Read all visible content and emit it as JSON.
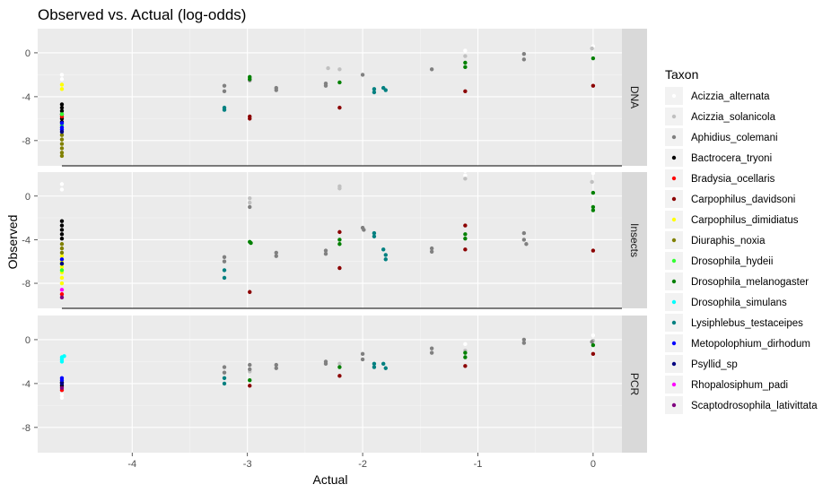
{
  "chart_data": {
    "type": "scatter",
    "title": "Observed vs. Actual (log-odds)",
    "xlabel": "Actual",
    "ylabel": "Observed",
    "xlim": [
      -4.82,
      0.25
    ],
    "ylim": [
      -10.3,
      2.2
    ],
    "x_ticks": [
      -4,
      -3,
      -2,
      -1,
      0
    ],
    "y_ticks": [
      0,
      -4,
      -8
    ],
    "grid": true,
    "legend": {
      "title": "Taxon",
      "position": "right"
    },
    "facets": [
      "DNA",
      "Insects",
      "PCR"
    ],
    "series": [
      {
        "name": "Acizzia_alternata",
        "color": "#ffffff",
        "points": {
          "DNA": [
            [
              -4.61,
              -2.0
            ],
            [
              -4.61,
              -2.4
            ],
            [
              -1.11,
              0.2
            ],
            [
              0.0,
              0.6
            ]
          ],
          "Insects": [
            [
              -4.61,
              1.1
            ],
            [
              -4.61,
              0.6
            ],
            [
              -1.11,
              2.3
            ],
            [
              -1.11,
              1.9
            ],
            [
              0.0,
              2.1
            ]
          ],
          "PCR": [
            [
              -4.61,
              -5.0
            ],
            [
              -4.61,
              -5.3
            ],
            [
              -1.11,
              -0.4
            ],
            [
              0.0,
              0.4
            ]
          ]
        }
      },
      {
        "name": "Acizzia_solanicola",
        "color": "#c0c0c0",
        "points": {
          "DNA": [
            [
              -2.98,
              -2.3
            ],
            [
              -2.3,
              -1.4
            ],
            [
              -2.2,
              -1.5
            ],
            [
              -1.11,
              -0.3
            ],
            [
              -0.01,
              0.4
            ]
          ],
          "Insects": [
            [
              -2.98,
              -0.2
            ],
            [
              -2.98,
              -0.6
            ],
            [
              -2.2,
              0.9
            ],
            [
              -2.2,
              0.7
            ],
            [
              -1.11,
              1.6
            ],
            [
              -0.01,
              1.3
            ]
          ],
          "PCR": [
            [
              -2.98,
              -2.9
            ],
            [
              -2.2,
              -2.2
            ],
            [
              -1.11,
              -1.0
            ],
            [
              0.0,
              -0.1
            ]
          ]
        }
      },
      {
        "name": "Aphidius_colemani",
        "color": "#808080",
        "points": {
          "DNA": [
            [
              -3.2,
              -3.0
            ],
            [
              -3.2,
              -3.5
            ],
            [
              -2.98,
              -2.5
            ],
            [
              -2.75,
              -3.2
            ],
            [
              -2.75,
              -3.4
            ],
            [
              -2.32,
              -2.8
            ],
            [
              -2.32,
              -3.0
            ],
            [
              -2.0,
              -2.0
            ],
            [
              -1.4,
              -1.5
            ],
            [
              -0.6,
              -0.1
            ],
            [
              -0.6,
              -0.6
            ]
          ],
          "Insects": [
            [
              -3.2,
              -5.6
            ],
            [
              -3.2,
              -6.0
            ],
            [
              -2.98,
              -1.0
            ],
            [
              -2.75,
              -5.2
            ],
            [
              -2.75,
              -5.5
            ],
            [
              -2.32,
              -5.0
            ],
            [
              -2.32,
              -5.3
            ],
            [
              -2.0,
              -2.9
            ],
            [
              -1.99,
              -3.1
            ],
            [
              -1.4,
              -4.8
            ],
            [
              -1.4,
              -5.1
            ],
            [
              -0.6,
              -3.4
            ],
            [
              -0.6,
              -4.0
            ],
            [
              -0.58,
              -4.4
            ]
          ],
          "PCR": [
            [
              -3.2,
              -2.5
            ],
            [
              -3.2,
              -3.0
            ],
            [
              -2.98,
              -2.3
            ],
            [
              -2.98,
              -2.7
            ],
            [
              -2.75,
              -2.3
            ],
            [
              -2.75,
              -2.6
            ],
            [
              -2.32,
              -2.0
            ],
            [
              -2.32,
              -2.2
            ],
            [
              -2.0,
              -1.3
            ],
            [
              -2.0,
              -1.8
            ],
            [
              -1.4,
              -0.8
            ],
            [
              -1.4,
              -1.2
            ],
            [
              -0.6,
              0.0
            ],
            [
              -0.6,
              -0.3
            ],
            [
              -0.01,
              -0.2
            ]
          ]
        }
      },
      {
        "name": "Bactrocera_tryoni",
        "color": "#000000",
        "points": {
          "DNA": [
            [
              -4.61,
              -4.7
            ],
            [
              -4.61,
              -5.0
            ],
            [
              -4.61,
              -5.3
            ],
            [
              -4.61,
              -5.6
            ],
            [
              -4.61,
              -6.0
            ],
            [
              -4.61,
              -6.3
            ]
          ],
          "Insects": [
            [
              -4.61,
              -2.3
            ],
            [
              -4.61,
              -2.7
            ],
            [
              -4.61,
              -3.1
            ],
            [
              -4.61,
              -3.5
            ],
            [
              -4.61,
              -3.9
            ]
          ],
          "PCR": [
            [
              -4.61,
              -3.9
            ],
            [
              -4.61,
              -4.2
            ]
          ]
        }
      },
      {
        "name": "Bradysia_ocellaris",
        "color": "#ff0000",
        "points": {
          "DNA": [
            [
              -4.61,
              -5.8
            ]
          ],
          "Insects": [
            [
              -4.61,
              -9.0
            ]
          ],
          "PCR": [
            [
              -4.61,
              -4.6
            ]
          ]
        }
      },
      {
        "name": "Carpophilus_davidsoni",
        "color": "#8b0000",
        "points": {
          "DNA": [
            [
              -2.98,
              -5.8
            ],
            [
              -2.98,
              -6.0
            ],
            [
              -2.2,
              -5.0
            ],
            [
              -1.11,
              -3.5
            ],
            [
              0.0,
              -3.0
            ]
          ],
          "Insects": [
            [
              -2.98,
              -8.8
            ],
            [
              -2.2,
              -3.3
            ],
            [
              -2.2,
              -6.6
            ],
            [
              -1.11,
              -2.7
            ],
            [
              -1.11,
              -4.9
            ],
            [
              0.0,
              -5.0
            ]
          ],
          "PCR": [
            [
              -2.98,
              -4.2
            ],
            [
              -2.2,
              -3.3
            ],
            [
              -1.11,
              -2.4
            ],
            [
              0.0,
              -1.3
            ]
          ]
        }
      },
      {
        "name": "Carpophilus_dimidiatus",
        "color": "#ffff00",
        "points": {
          "DNA": [
            [
              -4.61,
              -2.9
            ],
            [
              -4.61,
              -3.3
            ]
          ],
          "Insects": [
            [
              -4.61,
              -5.5
            ],
            [
              -4.61,
              -6.0
            ],
            [
              -4.61,
              -6.5
            ],
            [
              -4.61,
              -7.0
            ],
            [
              -4.61,
              -7.5
            ],
            [
              -4.61,
              -8.0
            ]
          ],
          "PCR": []
        }
      },
      {
        "name": "Diuraphis_noxia",
        "color": "#808000",
        "points": {
          "DNA": [
            [
              -4.61,
              -7.5
            ],
            [
              -4.61,
              -7.9
            ],
            [
              -4.61,
              -8.3
            ],
            [
              -4.61,
              -8.7
            ],
            [
              -4.61,
              -9.1
            ],
            [
              -4.61,
              -9.4
            ]
          ],
          "Insects": [
            [
              -4.61,
              -4.4
            ],
            [
              -4.61,
              -4.8
            ],
            [
              -4.61,
              -5.2
            ]
          ],
          "PCR": []
        }
      },
      {
        "name": "Drosophila_hydeii",
        "color": "#33ff33",
        "points": {
          "DNA": [
            [
              -4.61,
              -5.6
            ],
            [
              -4.61,
              -6.6
            ]
          ],
          "Insects": [
            [
              -4.61,
              -6.2
            ],
            [
              -4.61,
              -6.8
            ]
          ],
          "PCR": []
        }
      },
      {
        "name": "Drosophila_melanogaster",
        "color": "#008000",
        "points": {
          "DNA": [
            [
              -2.98,
              -2.2
            ],
            [
              -2.98,
              -2.4
            ],
            [
              -2.2,
              -2.7
            ],
            [
              -1.11,
              -0.9
            ],
            [
              -1.11,
              -1.3
            ],
            [
              0.0,
              -0.5
            ]
          ],
          "Insects": [
            [
              -2.98,
              -4.2
            ],
            [
              -2.97,
              -4.3
            ],
            [
              -2.2,
              -4.0
            ],
            [
              -2.2,
              -4.4
            ],
            [
              -1.11,
              -3.5
            ],
            [
              -1.11,
              -3.9
            ],
            [
              0.0,
              -1.0
            ],
            [
              0.0,
              -1.3
            ],
            [
              0.0,
              0.3
            ]
          ],
          "PCR": [
            [
              -2.98,
              -3.7
            ],
            [
              -2.2,
              -2.5
            ],
            [
              -1.11,
              -1.2
            ],
            [
              -1.11,
              -1.6
            ],
            [
              0.0,
              -0.5
            ]
          ]
        }
      },
      {
        "name": "Drosophila_simulans",
        "color": "#00ffff",
        "points": {
          "DNA": [],
          "Insects": [],
          "PCR": [
            [
              -4.61,
              -1.6
            ],
            [
              -4.61,
              -1.8
            ],
            [
              -4.61,
              -2.0
            ],
            [
              -4.59,
              -1.5
            ]
          ]
        }
      },
      {
        "name": "Lysiphlebus_testaceipes",
        "color": "#008080",
        "points": {
          "DNA": [
            [
              -3.2,
              -5.0
            ],
            [
              -3.2,
              -5.2
            ],
            [
              -1.9,
              -3.3
            ],
            [
              -1.9,
              -3.6
            ],
            [
              -1.82,
              -3.2
            ],
            [
              -1.8,
              -3.4
            ]
          ],
          "Insects": [
            [
              -3.2,
              -6.8
            ],
            [
              -3.2,
              -7.5
            ],
            [
              -1.9,
              -3.4
            ],
            [
              -1.9,
              -3.7
            ],
            [
              -1.82,
              -4.9
            ],
            [
              -1.8,
              -5.4
            ],
            [
              -1.8,
              -5.8
            ]
          ],
          "PCR": [
            [
              -3.2,
              -3.5
            ],
            [
              -3.2,
              -4.0
            ],
            [
              -1.9,
              -2.2
            ],
            [
              -1.9,
              -2.5
            ],
            [
              -1.82,
              -2.2
            ],
            [
              -1.8,
              -2.6
            ]
          ]
        }
      },
      {
        "name": "Metopolophium_dirhodum",
        "color": "#0000ff",
        "points": {
          "DNA": [
            [
              -4.61,
              -6.4
            ],
            [
              -4.61,
              -6.8
            ],
            [
              -4.61,
              -7.0
            ]
          ],
          "Insects": [
            [
              -4.61,
              -5.8
            ]
          ],
          "PCR": [
            [
              -4.61,
              -3.5
            ],
            [
              -4.61,
              -3.7
            ]
          ]
        }
      },
      {
        "name": "Psyllid_sp",
        "color": "#000080",
        "points": {
          "DNA": [
            [
              -4.61,
              -7.2
            ]
          ],
          "Insects": [
            [
              -4.61,
              -6.2
            ]
          ],
          "PCR": [
            [
              -4.61,
              -4.0
            ]
          ]
        }
      },
      {
        "name": "Rhopalosiphum_padi",
        "color": "#ff00ff",
        "points": {
          "DNA": [],
          "Insects": [
            [
              -4.61,
              -8.6
            ]
          ],
          "PCR": []
        }
      },
      {
        "name": "Scaptodrosophila_lativittata",
        "color": "#800080",
        "points": {
          "DNA": [],
          "Insects": [
            [
              -4.61,
              -9.3
            ]
          ],
          "PCR": [
            [
              -4.61,
              -4.4
            ]
          ]
        }
      }
    ]
  }
}
